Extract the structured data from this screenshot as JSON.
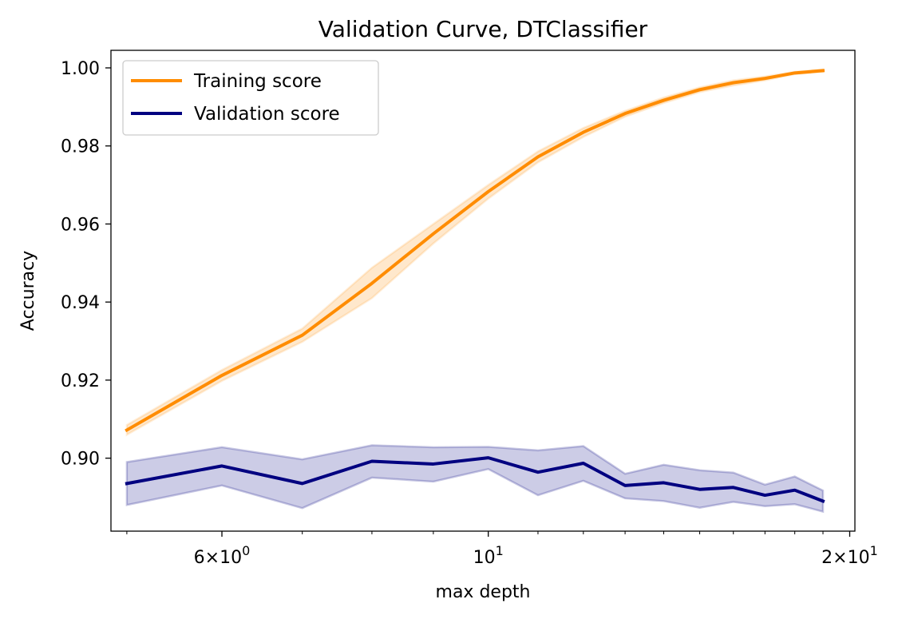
{
  "chart_data": {
    "type": "line",
    "title": "Validation Curve, DTClassifier",
    "xlabel": "max depth",
    "ylabel": "Accuracy",
    "xscale": "log",
    "xlim": [
      4.85,
      20.2
    ],
    "ylim": [
      0.8813,
      1.0045
    ],
    "grid": false,
    "legend_position": "upper-left",
    "x": [
      5,
      6,
      7,
      8,
      9,
      10,
      11,
      12,
      13,
      14,
      15,
      16,
      17,
      18,
      19
    ],
    "x_tick_labels": [
      {
        "value": 6,
        "base": "6",
        "times": "×",
        "mantissa": "10",
        "exp": "0"
      },
      {
        "value": 10,
        "base": "",
        "times": "",
        "mantissa": "10",
        "exp": "1"
      },
      {
        "value": 20,
        "base": "2",
        "times": "×",
        "mantissa": "10",
        "exp": "1"
      }
    ],
    "y_ticks": [
      0.9,
      0.92,
      0.94,
      0.96,
      0.98,
      1.0
    ],
    "y_tick_labels": [
      "0.90",
      "0.92",
      "0.94",
      "0.96",
      "0.98",
      "1.00"
    ],
    "series": [
      {
        "name": "Training score",
        "color": "#ff8c00",
        "values": [
          0.9072,
          0.9212,
          0.9315,
          0.9448,
          0.9575,
          0.9683,
          0.9772,
          0.9835,
          0.9883,
          0.9917,
          0.9944,
          0.9962,
          0.9973,
          0.9987,
          0.9993
        ],
        "lower": [
          0.906,
          0.9198,
          0.9298,
          0.941,
          0.955,
          0.9665,
          0.9758,
          0.9823,
          0.9875,
          0.991,
          0.9938,
          0.9955,
          0.9968,
          0.9984,
          0.999
        ],
        "upper": [
          0.9085,
          0.9226,
          0.9332,
          0.9488,
          0.96,
          0.97,
          0.9786,
          0.9846,
          0.989,
          0.9924,
          0.995,
          0.9968,
          0.9978,
          0.999,
          0.9996
        ]
      },
      {
        "name": "Validation score",
        "color": "#000080",
        "values": [
          0.8935,
          0.898,
          0.8935,
          0.8992,
          0.8985,
          0.9001,
          0.8964,
          0.8987,
          0.893,
          0.8937,
          0.892,
          0.8925,
          0.8905,
          0.8918,
          0.889
        ],
        "lower": [
          0.888,
          0.893,
          0.8872,
          0.895,
          0.894,
          0.8972,
          0.8905,
          0.8942,
          0.8897,
          0.889,
          0.8873,
          0.8888,
          0.8877,
          0.8882,
          0.8863
        ],
        "upper": [
          0.899,
          0.9028,
          0.8997,
          0.9033,
          0.9028,
          0.9029,
          0.902,
          0.9031,
          0.896,
          0.8983,
          0.8969,
          0.8963,
          0.8932,
          0.8953,
          0.8917
        ]
      }
    ]
  }
}
